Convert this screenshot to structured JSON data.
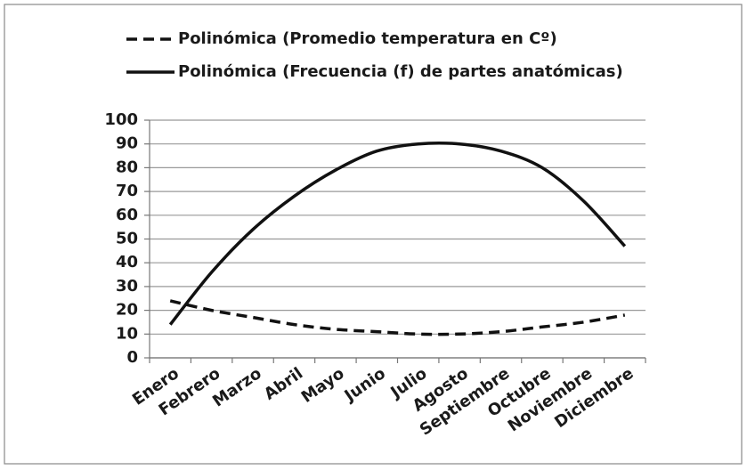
{
  "chart_data": {
    "type": "line",
    "categories": [
      "Enero",
      "Febrero",
      "Marzo",
      "Abril",
      "Mayo",
      "Junio",
      "Julio",
      "Agosto",
      "Septiembre",
      "Octubre",
      "Noviembre",
      "Diciembre"
    ],
    "series": [
      {
        "name": "Polinómica (Promedio temperatura en Cº)",
        "color": "#111111",
        "dash": true,
        "values": [
          24,
          20,
          17,
          14,
          12,
          11,
          10,
          10,
          11,
          13,
          15,
          18
        ]
      },
      {
        "name": "Polinómica (Frecuencia (f) de partes anatómicas)",
        "color": "#111111",
        "dash": false,
        "values": [
          14,
          36,
          54,
          68,
          79,
          87,
          90,
          90,
          87,
          80,
          66,
          47
        ]
      }
    ],
    "ylim": [
      0,
      100
    ],
    "yticks": [
      0,
      10,
      20,
      30,
      40,
      50,
      60,
      70,
      80,
      90,
      100
    ],
    "grid": true,
    "legend": "top"
  }
}
